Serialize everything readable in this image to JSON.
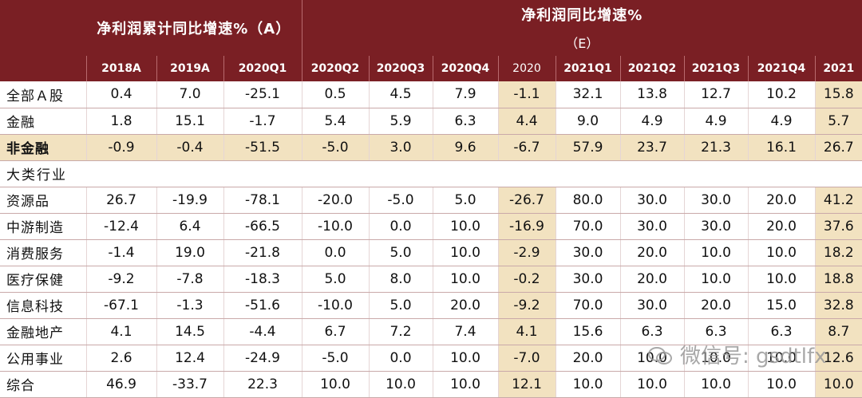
{
  "header": {
    "left_title": "净利润累计同比增速%（A）",
    "right_title": "净利润同比增速%",
    "right_subtitle": "（E）"
  },
  "chart_data": {
    "type": "table",
    "columns": [
      "2018A",
      "2019A",
      "2020Q1",
      "2020Q2",
      "2020Q3",
      "2020Q4",
      "2020",
      "2021Q1",
      "2021Q2",
      "2021Q3",
      "2021Q4",
      "2021"
    ],
    "rows": [
      {
        "label": "全部Ａ股",
        "values": [
          "0.4",
          "7.0",
          "-25.1",
          "0.5",
          "4.5",
          "7.9",
          "-1.1",
          "32.1",
          "13.8",
          "12.7",
          "10.2",
          "15.8"
        ]
      },
      {
        "label": "金融",
        "values": [
          "1.8",
          "15.1",
          "-1.7",
          "5.4",
          "5.9",
          "6.3",
          "4.4",
          "9.0",
          "4.9",
          "4.9",
          "4.9",
          "5.7"
        ]
      },
      {
        "label": "非金融",
        "values": [
          "-0.9",
          "-0.4",
          "-51.5",
          "-5.0",
          "3.0",
          "9.6",
          "-6.7",
          "57.9",
          "23.7",
          "21.3",
          "16.1",
          "26.7"
        ]
      }
    ],
    "section_label": "大类行业",
    "section_rows": [
      {
        "label": "资源品",
        "values": [
          "26.7",
          "-19.9",
          "-78.1",
          "-20.0",
          "-5.0",
          "5.0",
          "-26.7",
          "80.0",
          "30.0",
          "30.0",
          "20.0",
          "41.2"
        ]
      },
      {
        "label": "中游制造",
        "values": [
          "-12.4",
          "6.4",
          "-66.5",
          "-10.0",
          "0.0",
          "10.0",
          "-16.9",
          "70.0",
          "30.0",
          "30.0",
          "20.0",
          "37.6"
        ]
      },
      {
        "label": "消费服务",
        "values": [
          "-1.4",
          "19.0",
          "-21.8",
          "0.0",
          "5.0",
          "10.0",
          "-2.9",
          "30.0",
          "20.0",
          "10.0",
          "10.0",
          "18.2"
        ]
      },
      {
        "label": "医疗保健",
        "values": [
          "-9.2",
          "-7.8",
          "-18.3",
          "5.0",
          "8.0",
          "10.0",
          "-0.2",
          "30.0",
          "20.0",
          "10.0",
          "10.0",
          "18.8"
        ]
      },
      {
        "label": "信息科技",
        "values": [
          "-67.1",
          "-1.3",
          "-51.6",
          "-10.0",
          "5.0",
          "20.0",
          "-9.2",
          "70.0",
          "30.0",
          "20.0",
          "15.0",
          "32.8"
        ]
      },
      {
        "label": "金融地产",
        "values": [
          "4.1",
          "14.5",
          "-4.4",
          "6.7",
          "7.2",
          "7.4",
          "4.1",
          "15.6",
          "6.3",
          "6.3",
          "6.3",
          "8.7"
        ]
      },
      {
        "label": "公用事业",
        "values": [
          "2.6",
          "12.4",
          "-24.9",
          "-5.0",
          "0.0",
          "10.0",
          "-7.0",
          "20.0",
          "10.0",
          "10.0",
          "10.0",
          "12.6"
        ]
      },
      {
        "label": "综合",
        "values": [
          "46.9",
          "-33.7",
          "22.3",
          "10.0",
          "10.0",
          "10.0",
          "12.1",
          "10.0",
          "10.0",
          "10.0",
          "10.0",
          "10.0"
        ]
      }
    ]
  },
  "watermark": {
    "text": "微信号: gsdtlfx"
  }
}
